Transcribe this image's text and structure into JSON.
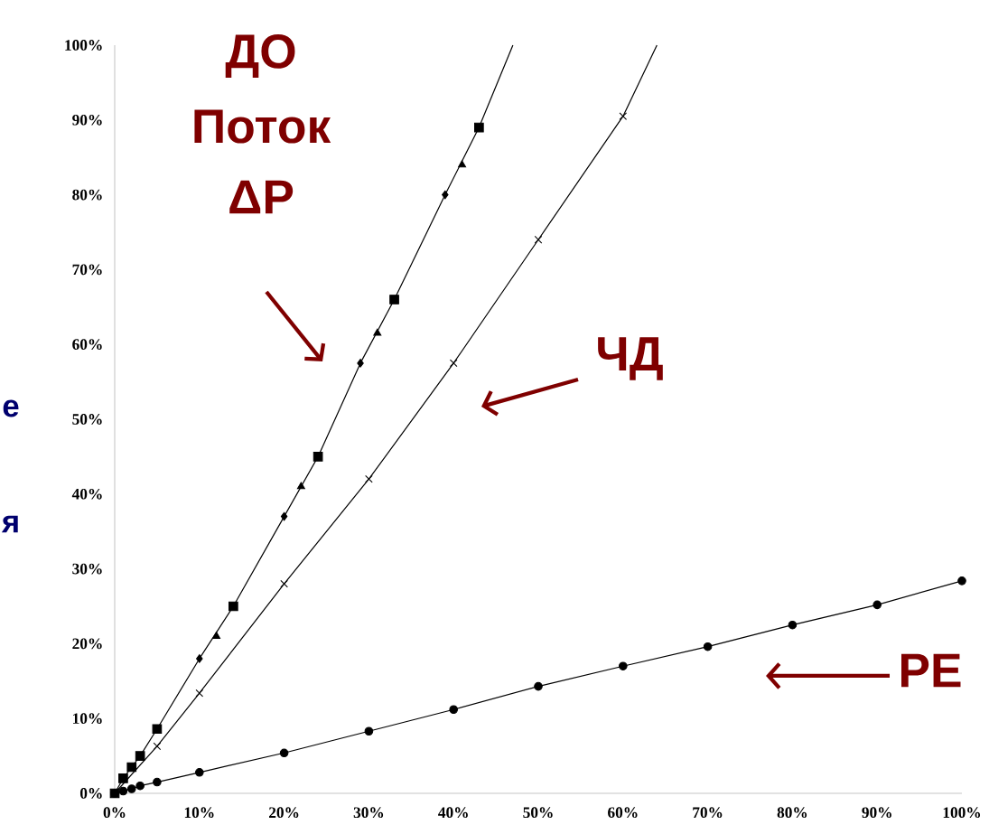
{
  "chart_data": {
    "type": "scatter",
    "xlim": [
      0,
      100
    ],
    "ylim": [
      0,
      100
    ],
    "xticks": [
      {
        "value": 0,
        "label": "0%"
      },
      {
        "value": 10,
        "label": "10%"
      },
      {
        "value": 20,
        "label": "20%"
      },
      {
        "value": 30,
        "label": "30%"
      },
      {
        "value": 40,
        "label": "40%"
      },
      {
        "value": 50,
        "label": "50%"
      },
      {
        "value": 60,
        "label": "60%"
      },
      {
        "value": 70,
        "label": "70%"
      },
      {
        "value": 80,
        "label": "80%"
      },
      {
        "value": 90,
        "label": "90%"
      },
      {
        "value": 100,
        "label": "100%"
      }
    ],
    "yticks": [
      {
        "value": 0,
        "label": "0%"
      },
      {
        "value": 10,
        "label": "10%"
      },
      {
        "value": 20,
        "label": "20%"
      },
      {
        "value": 30,
        "label": "30%"
      },
      {
        "value": 40,
        "label": "40%"
      },
      {
        "value": 50,
        "label": "50%"
      },
      {
        "value": 60,
        "label": "60%"
      },
      {
        "value": 70,
        "label": "70%"
      },
      {
        "value": 80,
        "label": "80%"
      },
      {
        "value": 90,
        "label": "90%"
      },
      {
        "value": 100,
        "label": "100%"
      }
    ],
    "series": [
      {
        "type": "line",
        "marker": "none",
        "color": "#000000",
        "x": [
          0,
          1,
          2,
          3,
          5,
          10,
          14,
          20,
          24,
          29,
          33,
          39,
          43,
          47
        ],
        "values": [
          0,
          2,
          3.5,
          5,
          8.6,
          18,
          25,
          37,
          45,
          57.5,
          66,
          80,
          89,
          100
        ]
      },
      {
        "type": "line",
        "marker": "none",
        "color": "#000000",
        "x": [
          0,
          5,
          10,
          20,
          30,
          40,
          50,
          60,
          64
        ],
        "values": [
          0,
          6.3,
          13.4,
          28,
          42,
          57.5,
          74,
          90.5,
          100
        ]
      },
      {
        "marker": "square",
        "color": "#000000",
        "x": [
          0,
          1,
          2,
          3,
          5,
          14,
          24,
          33,
          43
        ],
        "values": [
          0,
          2,
          3.5,
          5,
          8.6,
          25,
          45,
          66,
          89
        ]
      },
      {
        "marker": "triangle",
        "color": "#000000",
        "x": [
          12,
          22,
          31,
          41
        ],
        "values": [
          21,
          41,
          61.5,
          84
        ]
      },
      {
        "marker": "diamond",
        "color": "#000000",
        "x": [
          10,
          20,
          29,
          39
        ],
        "values": [
          18,
          37,
          57.5,
          80
        ]
      },
      {
        "marker": "cross",
        "color": "#000000",
        "x": [
          5,
          10,
          20,
          30,
          40,
          50,
          60
        ],
        "values": [
          6.3,
          13.4,
          28,
          42,
          57.5,
          74,
          90.5
        ]
      },
      {
        "type": "line",
        "marker": "circle",
        "color": "#000000",
        "x": [
          0,
          1,
          2,
          3,
          5,
          10,
          20,
          30,
          40,
          50,
          60,
          70,
          80,
          90,
          100
        ],
        "values": [
          0,
          0.3,
          0.6,
          1,
          1.5,
          2.8,
          5.4,
          8.3,
          11.2,
          14.3,
          17,
          19.6,
          22.5,
          25.2,
          28.4
        ]
      }
    ],
    "annotations": [
      "ДО",
      "Поток",
      "ΔP",
      "ЧД",
      "РЕ",
      "е",
      "я"
    ]
  }
}
